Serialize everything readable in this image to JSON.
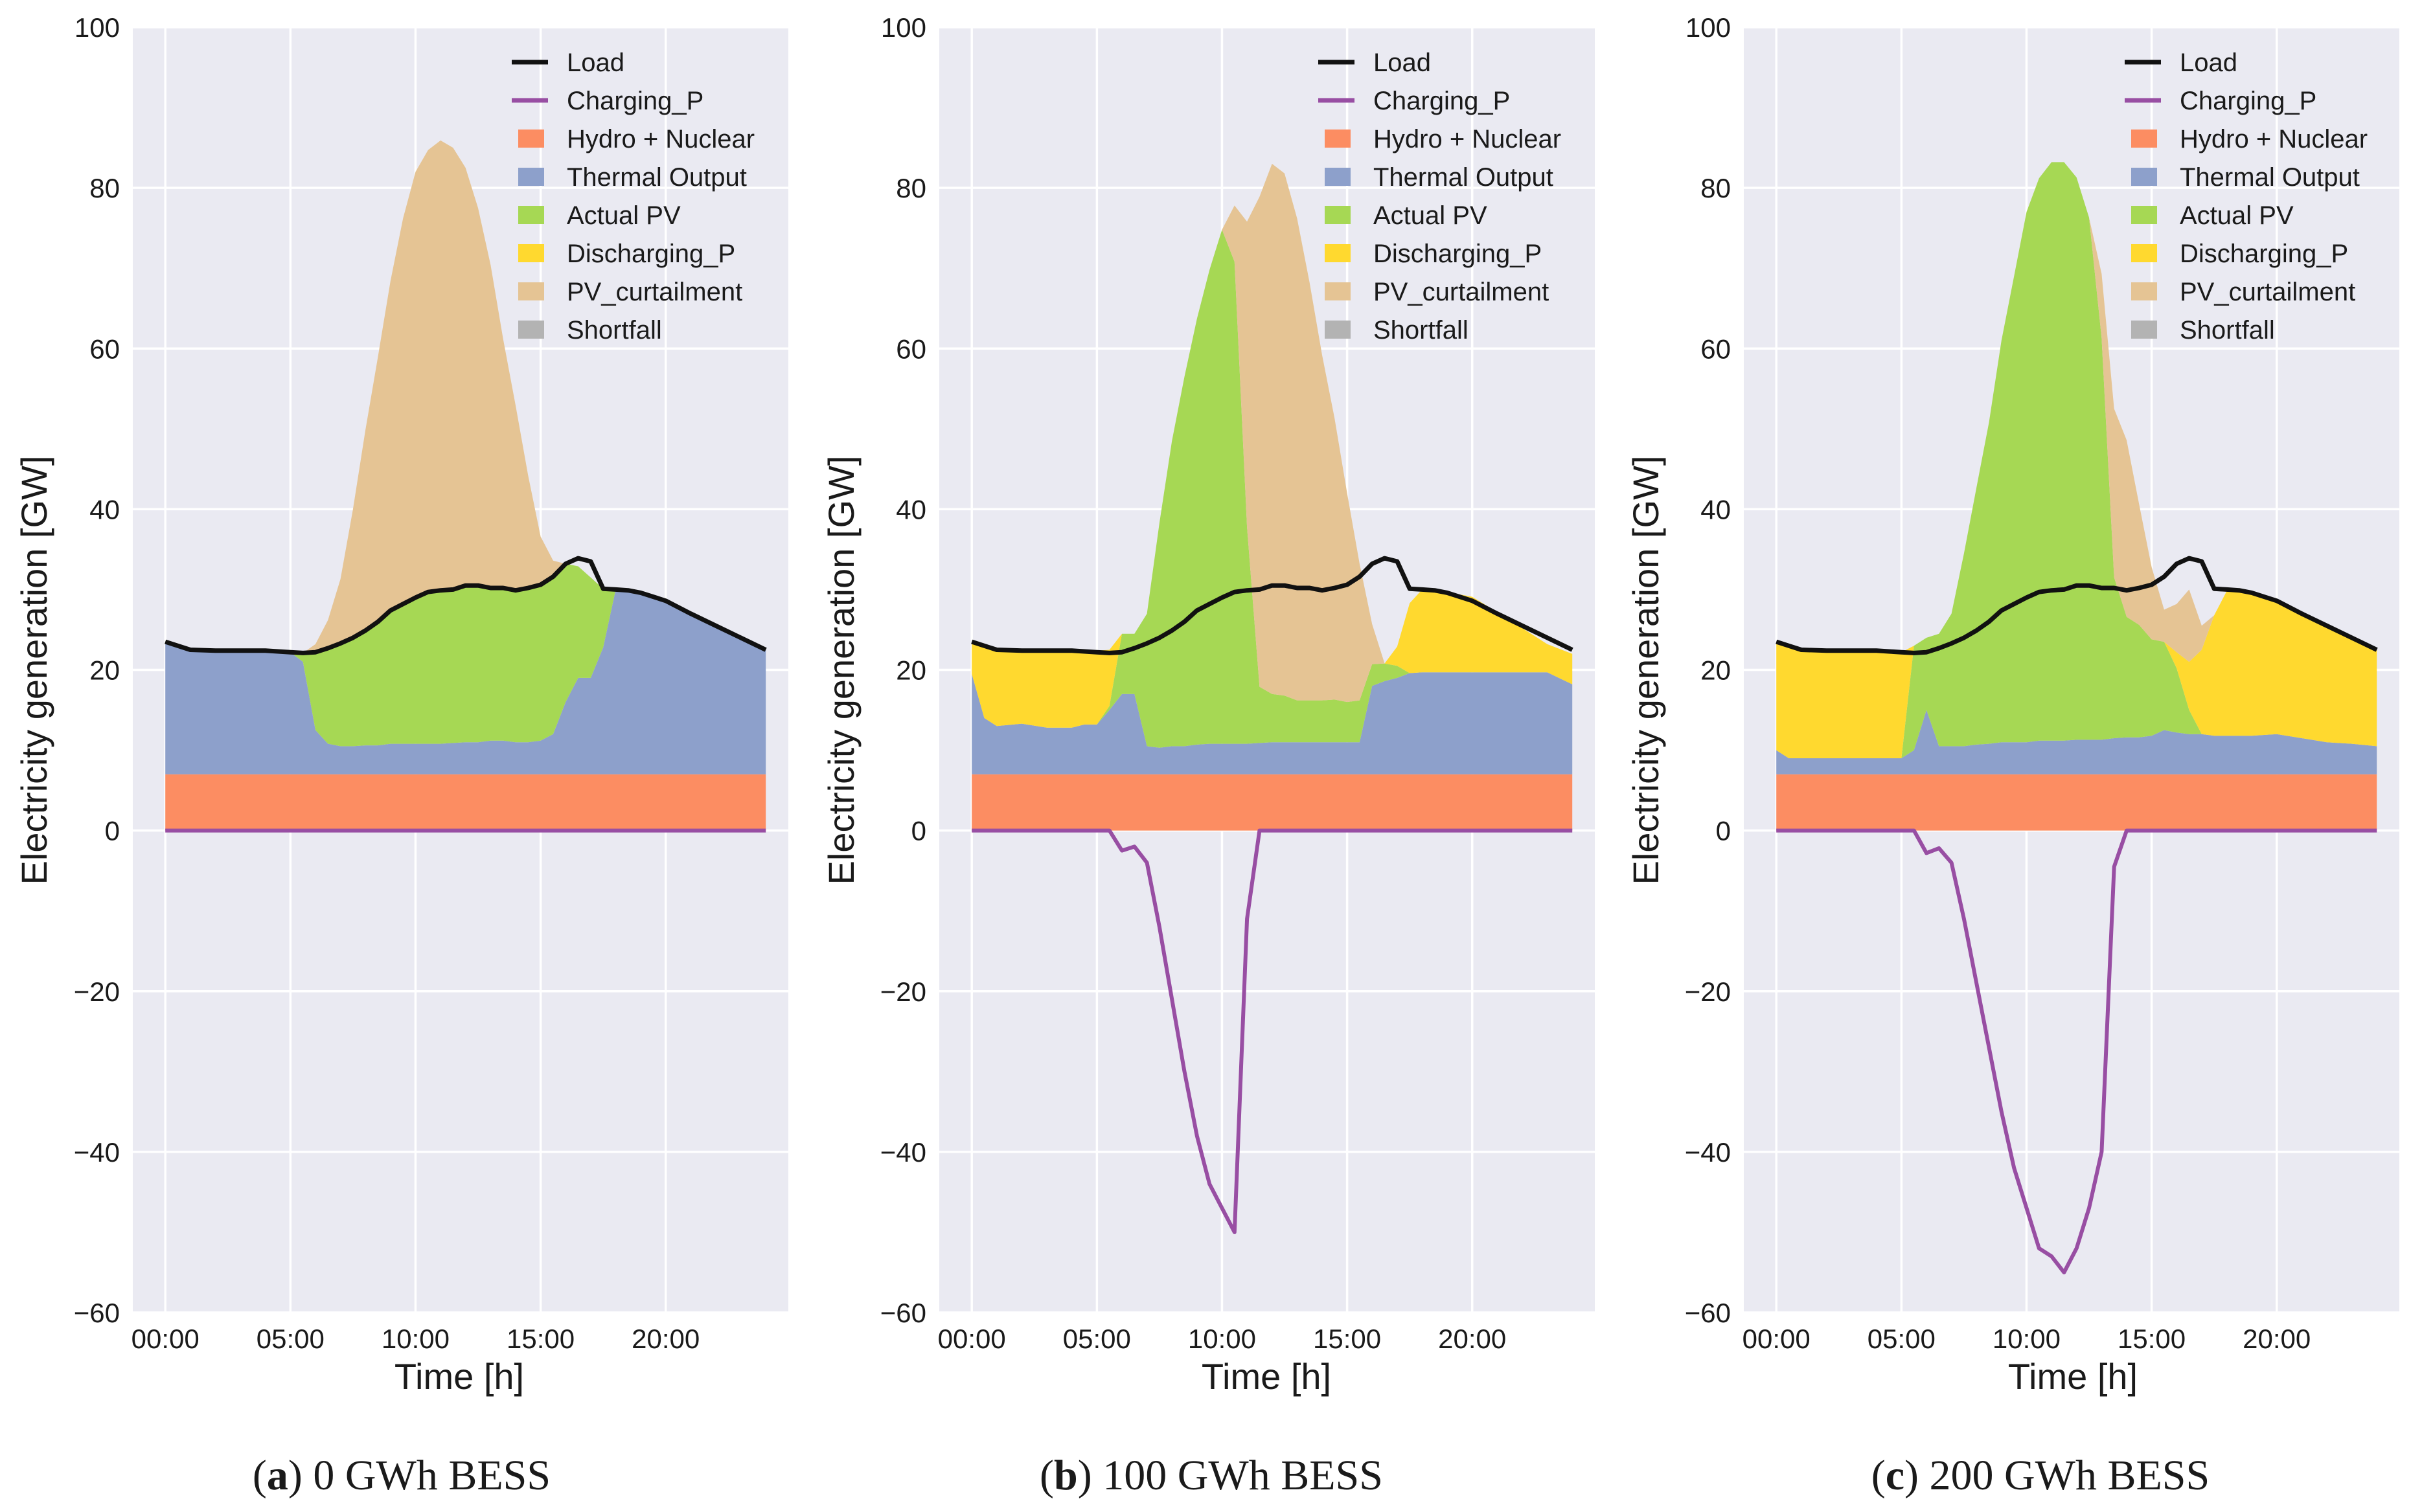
{
  "colors": {
    "hydro_nuclear": "#fc8d62",
    "thermal": "#8da0cb",
    "actual_pv": "#a6d854",
    "discharging": "#ffd92f",
    "pv_curtailment": "#e5c494",
    "shortfall": "#b3b3b3",
    "load": "#111111",
    "charging": "#984ea3",
    "plot_bg": "#eaeaf2"
  },
  "chart_data": [
    {
      "type": "area",
      "panel_letter": "a",
      "caption_text": "0 GWh BESS",
      "xlabel": "Time [h]",
      "ylabel": "Electricity generation [GW]",
      "ylim": [
        -60,
        100
      ],
      "yticks": [
        "100",
        "80",
        "60",
        "40",
        "20",
        "0",
        "−20",
        "−40",
        "−60"
      ],
      "xticks": [
        "00:00",
        "05:00",
        "10:00",
        "15:00",
        "20:00"
      ],
      "legend": [
        "Load",
        "Charging_P",
        "Hydro + Nuclear",
        "Thermal Output",
        "Actual PV",
        "Discharging_P",
        "PV_curtailment",
        "Shortfall"
      ],
      "legend_position": "top-right",
      "hours": [
        0,
        1,
        2,
        3,
        4,
        5,
        5.5,
        6,
        6.5,
        7,
        7.5,
        8,
        8.5,
        9,
        9.5,
        10,
        10.5,
        11,
        11.5,
        12,
        12.5,
        13,
        13.5,
        14,
        14.5,
        15,
        15.5,
        16,
        16.5,
        17,
        17.5,
        18,
        18.5,
        19,
        20,
        21,
        22,
        23,
        24
      ],
      "hydro_nuclear": [
        7,
        7,
        7,
        7,
        7,
        7,
        7,
        7,
        7,
        7,
        7,
        7,
        7,
        7,
        7,
        7,
        7,
        7,
        7,
        7,
        7,
        7,
        7,
        7,
        7,
        7,
        7,
        7,
        7,
        7,
        7,
        7,
        7,
        7,
        7,
        7,
        7,
        7,
        7
      ],
      "thermal": [
        16.5,
        15.5,
        15.4,
        15.4,
        15.4,
        15.2,
        14,
        5.5,
        3.8,
        3.5,
        3.5,
        3.6,
        3.6,
        3.8,
        3.8,
        3.8,
        3.8,
        3.8,
        3.9,
        4,
        4,
        4.2,
        4.2,
        4,
        4,
        4.2,
        5,
        9,
        12,
        12,
        15.8,
        23,
        23,
        22.6,
        21.6,
        20,
        18.5,
        17,
        15.5
      ],
      "actual_pv": [
        0,
        0,
        0,
        0,
        0,
        0,
        1.1,
        9.7,
        11.9,
        12.8,
        13.5,
        14.3,
        15.4,
        16.6,
        17.4,
        18.2,
        18.9,
        19.1,
        19.1,
        19.5,
        19.5,
        19.2,
        19,
        18.9,
        19.2,
        19.4,
        19.6,
        17.2,
        13.9,
        12.5,
        7.3,
        0,
        0,
        0,
        0,
        0,
        0,
        0,
        0
      ],
      "discharging": [
        0,
        0,
        0,
        0,
        0,
        0,
        0,
        0,
        0,
        0,
        0,
        0,
        0,
        0,
        0,
        0,
        0,
        0,
        0,
        0,
        0,
        0,
        0,
        0,
        0,
        0,
        0,
        0,
        0,
        0,
        0,
        0,
        0,
        0,
        0,
        0,
        0,
        0,
        0
      ],
      "pv_curtailment": [
        0,
        0,
        0,
        0,
        0,
        0,
        0,
        1,
        3.5,
        8,
        16,
        25,
        33,
        41,
        48,
        53,
        55,
        56,
        55,
        52,
        47,
        40,
        31,
        23,
        14,
        6,
        2,
        0,
        0,
        0,
        0,
        0,
        0,
        0,
        0,
        0,
        0,
        0,
        0
      ],
      "shortfall": [
        0,
        0,
        0,
        0,
        0,
        0,
        0,
        0,
        0,
        0,
        0,
        0,
        0,
        0,
        0,
        0,
        0,
        0,
        0,
        0,
        0,
        0,
        0,
        0,
        0,
        0,
        0,
        0,
        0,
        0,
        0,
        0,
        0,
        0,
        0,
        0,
        0,
        0,
        0
      ],
      "load": [
        23.5,
        22.5,
        22.4,
        22.4,
        22.4,
        22.2,
        22.1,
        22.2,
        22.7,
        23.3,
        24.0,
        24.9,
        26.0,
        27.4,
        28.2,
        29.0,
        29.7,
        29.9,
        30.0,
        30.5,
        30.5,
        30.2,
        30.2,
        29.9,
        30.2,
        30.6,
        31.6,
        33.2,
        33.9,
        33.5,
        30.1,
        30.0,
        29.9,
        29.6,
        28.6,
        27.0,
        25.5,
        24.0,
        22.5
      ],
      "charging": [
        0,
        0,
        0,
        0,
        0,
        0,
        0,
        0,
        0,
        0,
        0,
        0,
        0,
        0,
        0,
        0,
        0,
        0,
        0,
        0,
        0,
        0,
        0,
        0,
        0,
        0,
        0,
        0,
        0,
        0,
        0,
        0,
        0,
        0,
        0,
        0,
        0,
        0,
        0
      ]
    },
    {
      "type": "area",
      "panel_letter": "b",
      "caption_text": "100 GWh BESS",
      "xlabel": "Time [h]",
      "ylabel": "Electricity generation [GW]",
      "ylim": [
        -60,
        100
      ],
      "yticks": [
        "100",
        "80",
        "60",
        "40",
        "20",
        "0",
        "−20",
        "−40",
        "−60"
      ],
      "xticks": [
        "00:00",
        "05:00",
        "10:00",
        "15:00",
        "20:00"
      ],
      "legend": [
        "Load",
        "Charging_P",
        "Hydro + Nuclear",
        "Thermal Output",
        "Actual PV",
        "Discharging_P",
        "PV_curtailment",
        "Shortfall"
      ],
      "legend_position": "top-right",
      "hours": [
        0,
        0.5,
        1,
        2,
        3,
        4,
        4.5,
        5,
        5.5,
        6,
        6.5,
        7,
        7.5,
        8,
        8.5,
        9,
        9.5,
        10,
        10.5,
        11,
        11.5,
        12,
        12.5,
        13,
        13.5,
        14,
        14.5,
        15,
        15.5,
        16,
        16.5,
        17,
        17.5,
        18,
        18.5,
        19,
        20,
        21,
        22,
        23,
        24
      ],
      "hydro_nuclear": [
        7,
        7,
        7,
        7,
        7,
        7,
        7,
        7,
        7,
        7,
        7,
        7,
        7,
        7,
        7,
        7,
        7,
        7,
        7,
        7,
        7,
        7,
        7,
        7,
        7,
        7,
        7,
        7,
        7,
        7,
        7,
        7,
        7,
        7,
        7,
        7,
        7,
        7,
        7,
        7,
        7
      ],
      "thermal": [
        12.5,
        7,
        6,
        6.3,
        5.8,
        5.8,
        6.2,
        6.2,
        8,
        10,
        10,
        3.5,
        3.3,
        3.5,
        3.5,
        3.7,
        3.8,
        3.8,
        3.8,
        3.8,
        3.9,
        4,
        4,
        4,
        4,
        4,
        4,
        4,
        4,
        11,
        11.6,
        12,
        12.6,
        12.7,
        12.7,
        12.7,
        12.7,
        12.7,
        12.7,
        12.7,
        11.2
      ],
      "actual_pv": [
        0,
        0,
        0,
        0,
        0,
        0,
        0,
        0,
        0.5,
        7.5,
        7.5,
        16.5,
        28,
        38,
        46,
        53,
        59,
        64,
        60,
        27,
        7,
        6,
        5.8,
        5.2,
        5.2,
        5.2,
        5.3,
        5,
        5.2,
        2.7,
        2.2,
        1.5,
        0,
        0,
        0,
        0,
        0,
        0,
        0,
        0,
        0
      ],
      "discharging": [
        4,
        9,
        9.5,
        9.1,
        9.6,
        9.6,
        9,
        9.2,
        7,
        0,
        0,
        0,
        0,
        0,
        0,
        0,
        0,
        0,
        0,
        0,
        0,
        0,
        0,
        0,
        0,
        0,
        0,
        0,
        0,
        0,
        0,
        2.4,
        8.7,
        10.3,
        10.2,
        10,
        9.4,
        7.5,
        5.5,
        3.5,
        3.8
      ],
      "pv_curtailment": [
        0,
        0,
        0,
        0,
        0,
        0,
        0,
        0,
        0,
        0,
        0,
        0,
        0,
        0,
        0,
        0,
        0,
        0,
        7,
        38,
        61,
        66,
        65,
        60,
        52,
        43,
        35,
        26,
        17,
        5,
        0,
        0,
        0,
        0,
        0,
        0,
        0,
        0,
        0,
        0,
        0
      ],
      "shortfall": [
        0,
        0,
        0,
        0,
        0,
        0,
        0,
        0,
        0,
        0,
        0,
        0,
        0,
        0,
        0,
        0,
        0,
        0,
        0,
        0,
        0,
        0,
        0,
        0,
        0,
        0,
        0,
        0,
        0,
        0,
        0,
        0,
        0,
        0,
        0,
        0,
        0,
        0,
        0,
        0,
        0
      ],
      "load": [
        23.5,
        23.0,
        22.5,
        22.4,
        22.4,
        22.4,
        22.3,
        22.2,
        22.1,
        22.2,
        22.7,
        23.3,
        24.0,
        24.9,
        26.0,
        27.4,
        28.2,
        29.0,
        29.7,
        29.9,
        30.0,
        30.5,
        30.5,
        30.2,
        30.2,
        29.9,
        30.2,
        30.6,
        31.6,
        33.2,
        33.9,
        33.5,
        30.1,
        30.0,
        29.9,
        29.6,
        28.6,
        27.0,
        25.5,
        24.0,
        22.5
      ],
      "charging": [
        0,
        0,
        0,
        0,
        0,
        0,
        0,
        0,
        0,
        -2.5,
        -2,
        -4,
        -12,
        -21,
        -30,
        -38,
        -44,
        -47,
        -50,
        -11,
        0,
        0,
        0,
        0,
        0,
        0,
        0,
        0,
        0,
        0,
        0,
        0,
        0,
        0,
        0,
        0,
        0,
        0,
        0,
        0,
        0
      ]
    },
    {
      "type": "area",
      "panel_letter": "c",
      "caption_text": "200 GWh BESS",
      "xlabel": "Time [h]",
      "ylabel": "Electricity generation [GW]",
      "ylim": [
        -60,
        100
      ],
      "yticks": [
        "100",
        "80",
        "60",
        "40",
        "20",
        "0",
        "−20",
        "−40",
        "−60"
      ],
      "xticks": [
        "00:00",
        "05:00",
        "10:00",
        "15:00",
        "20:00"
      ],
      "legend": [
        "Load",
        "Charging_P",
        "Hydro + Nuclear",
        "Thermal Output",
        "Actual PV",
        "Discharging_P",
        "PV_curtailment",
        "Shortfall"
      ],
      "legend_position": "top-right",
      "hours": [
        0,
        0.5,
        1,
        2,
        3,
        4,
        4.5,
        5,
        5.5,
        6,
        6.5,
        7,
        7.5,
        8,
        8.5,
        9,
        9.5,
        10,
        10.5,
        11,
        11.5,
        12,
        12.5,
        13,
        13.5,
        14,
        14.5,
        15,
        15.5,
        16,
        16.5,
        17,
        17.5,
        18,
        18.5,
        19,
        20,
        21,
        22,
        23,
        24
      ],
      "hydro_nuclear": [
        7,
        7,
        7,
        7,
        7,
        7,
        7,
        7,
        7,
        7,
        7,
        7,
        7,
        7,
        7,
        7,
        7,
        7,
        7,
        7,
        7,
        7,
        7,
        7,
        7,
        7,
        7,
        7,
        7,
        7,
        7,
        7,
        7,
        7,
        7,
        7,
        7,
        7,
        7,
        7,
        7
      ],
      "thermal": [
        3,
        2,
        2,
        2,
        2,
        2,
        2,
        2,
        3,
        8,
        3.5,
        3.5,
        3.5,
        3.7,
        3.8,
        4,
        4,
        4,
        4.2,
        4.2,
        4.2,
        4.3,
        4.3,
        4.3,
        4.5,
        4.6,
        4.6,
        4.8,
        5.5,
        5.2,
        5,
        5,
        4.8,
        4.8,
        4.8,
        4.8,
        5,
        4.5,
        4,
        3.8,
        3.5
      ],
      "actual_pv": [
        0,
        0,
        0,
        0,
        0,
        0,
        0,
        0,
        13,
        9,
        14,
        16.5,
        24,
        32,
        40,
        50,
        58,
        66,
        70,
        72,
        72,
        70,
        65,
        50,
        20,
        15,
        14,
        12,
        11,
        8,
        3,
        0,
        0,
        0,
        0,
        0,
        0,
        0,
        0,
        0,
        0
      ],
      "discharging": [
        13.5,
        14,
        13.4,
        13.4,
        13.4,
        13.4,
        13.3,
        13.2,
        0,
        0,
        0,
        0,
        0,
        0,
        0,
        0,
        0,
        0,
        0,
        0,
        0,
        0,
        0,
        0,
        0,
        0,
        0,
        0,
        0,
        2,
        6,
        10.5,
        15,
        18,
        18.3,
        17.8,
        16.6,
        15.5,
        14.5,
        13.2,
        12
      ],
      "pv_curtailment": [
        0,
        0,
        0,
        0,
        0,
        0,
        0,
        0,
        0,
        0,
        0,
        0,
        0,
        0,
        0,
        0,
        0,
        0,
        0,
        0,
        0,
        0,
        0,
        8,
        21,
        22,
        15,
        9,
        4,
        6,
        9,
        3,
        0,
        0,
        0,
        0,
        0,
        0,
        0,
        0,
        0
      ],
      "shortfall": [
        0,
        0,
        0,
        0,
        0,
        0,
        0,
        0,
        0,
        0,
        0,
        0,
        0,
        0,
        0,
        0,
        0,
        0,
        0,
        0,
        0,
        0,
        0,
        0,
        0,
        0,
        0,
        0,
        0,
        0,
        0,
        0,
        0,
        0,
        0,
        0,
        0,
        0,
        0,
        0,
        0
      ],
      "load": [
        23.5,
        23.0,
        22.5,
        22.4,
        22.4,
        22.4,
        22.3,
        22.2,
        22.1,
        22.2,
        22.7,
        23.3,
        24.0,
        24.9,
        26.0,
        27.4,
        28.2,
        29.0,
        29.7,
        29.9,
        30.0,
        30.5,
        30.5,
        30.2,
        30.2,
        29.9,
        30.2,
        30.6,
        31.6,
        33.2,
        33.9,
        33.5,
        30.1,
        30.0,
        29.9,
        29.6,
        28.6,
        27.0,
        25.5,
        24.0,
        22.5
      ],
      "charging": [
        0,
        0,
        0,
        0,
        0,
        0,
        0,
        0,
        0,
        -2.8,
        -2.2,
        -4,
        -11,
        -19,
        -27,
        -35,
        -42,
        -47,
        -52,
        -53,
        -55,
        -52,
        -47,
        -40,
        -4.5,
        0,
        0,
        0,
        0,
        0,
        0,
        0,
        0,
        0,
        0,
        0,
        0,
        0,
        0,
        0,
        0
      ]
    }
  ]
}
